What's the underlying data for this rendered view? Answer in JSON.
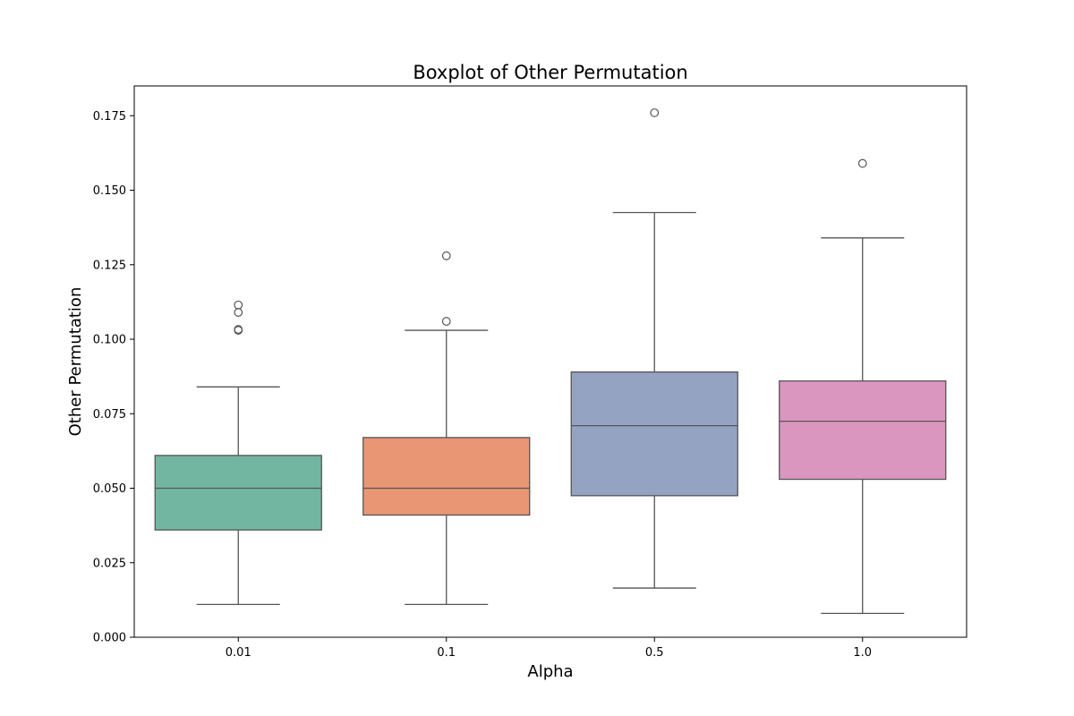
{
  "chart_data": {
    "type": "boxplot",
    "title": "Boxplot of Other Permutation",
    "xlabel": "Alpha",
    "ylabel": "Other Permutation",
    "ylim": [
      0.0,
      0.185
    ],
    "yticks": [
      "0.000",
      "0.025",
      "0.050",
      "0.075",
      "0.100",
      "0.125",
      "0.150",
      "0.175"
    ],
    "categories": [
      "0.01",
      "0.1",
      "0.5",
      "1.0"
    ],
    "boxes": [
      {
        "category": "0.01",
        "color": "#72b6a1",
        "whisker_low": 0.011,
        "q1": 0.036,
        "median": 0.05,
        "q3": 0.061,
        "whisker_high": 0.084,
        "outliers": [
          0.103,
          0.1033,
          0.109,
          0.1115
        ]
      },
      {
        "category": "0.1",
        "color": "#e99675",
        "whisker_low": 0.011,
        "q1": 0.041,
        "median": 0.05,
        "q3": 0.067,
        "whisker_high": 0.103,
        "outliers": [
          0.106,
          0.128
        ]
      },
      {
        "category": "0.5",
        "color": "#95a3c3",
        "whisker_low": 0.0165,
        "q1": 0.0475,
        "median": 0.071,
        "q3": 0.089,
        "whisker_high": 0.1425,
        "outliers": [
          0.176
        ]
      },
      {
        "category": "1.0",
        "color": "#db96c0",
        "whisker_low": 0.008,
        "q1": 0.053,
        "median": 0.0725,
        "q3": 0.086,
        "whisker_high": 0.134,
        "outliers": [
          0.159
        ]
      }
    ],
    "grid": false,
    "legend": "none"
  }
}
